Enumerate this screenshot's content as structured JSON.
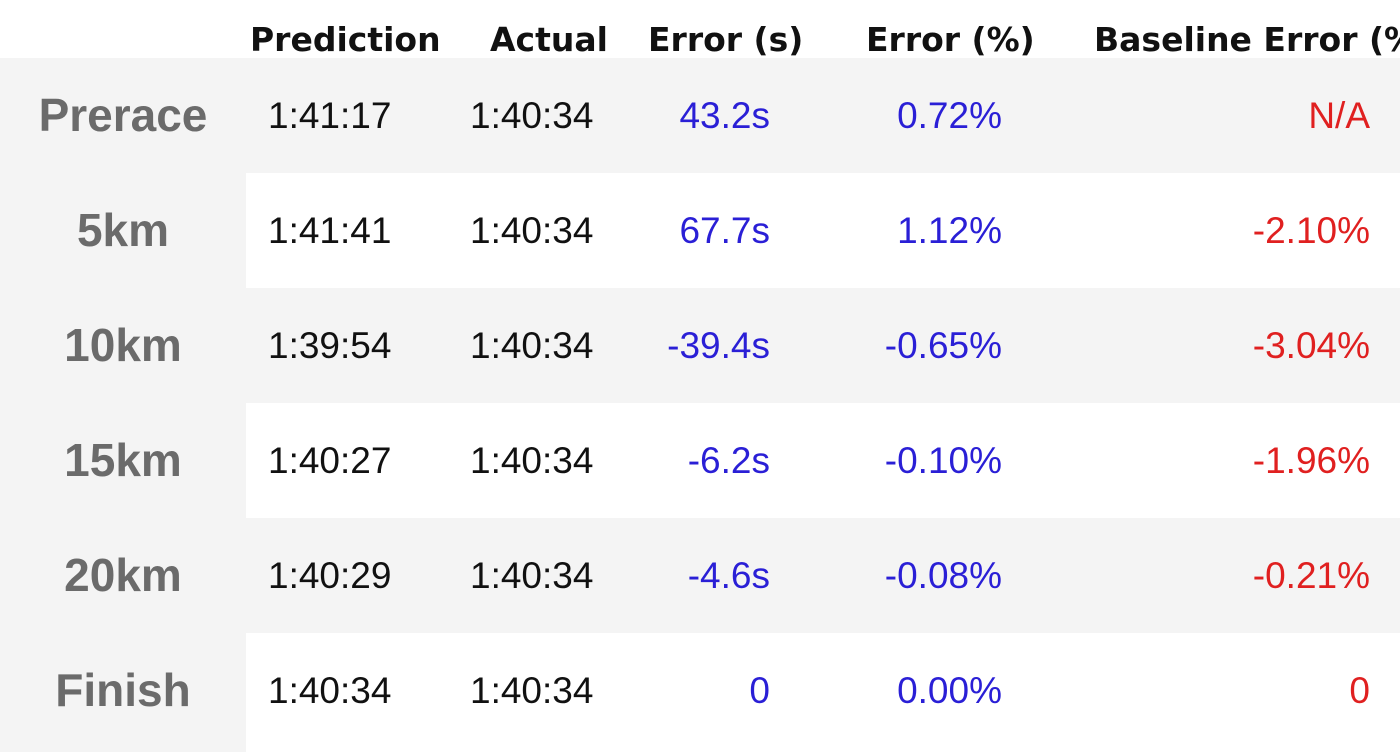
{
  "chart_data": {
    "type": "table",
    "columns": [
      "",
      "Prediction",
      "Actual",
      "Error (s)",
      "Error (%)",
      "Baseline Error (%)"
    ],
    "rows": [
      {
        "label": "Prerace",
        "prediction": "1:41:17",
        "actual": "1:40:34",
        "error_s": "43.2s",
        "error_pct": "0.72%",
        "baseline_error_pct": "N/A"
      },
      {
        "label": "5km",
        "prediction": "1:41:41",
        "actual": "1:40:34",
        "error_s": "67.7s",
        "error_pct": "1.12%",
        "baseline_error_pct": "-2.10%"
      },
      {
        "label": "10km",
        "prediction": "1:39:54",
        "actual": "1:40:34",
        "error_s": "-39.4s",
        "error_pct": "-0.65%",
        "baseline_error_pct": "-3.04%"
      },
      {
        "label": "15km",
        "prediction": "1:40:27",
        "actual": "1:40:34",
        "error_s": "-6.2s",
        "error_pct": "-0.10%",
        "baseline_error_pct": "-1.96%"
      },
      {
        "label": "20km",
        "prediction": "1:40:29",
        "actual": "1:40:34",
        "error_s": "-4.6s",
        "error_pct": "-0.08%",
        "baseline_error_pct": "-0.21%"
      },
      {
        "label": "Finish",
        "prediction": "1:40:34",
        "actual": "1:40:34",
        "error_s": "0",
        "error_pct": "0.00%",
        "baseline_error_pct": "0"
      }
    ]
  },
  "colors": {
    "label_text": "#6b6b6b",
    "model_error": "#2a1fd6",
    "baseline_error": "#e02020",
    "row_stripe": "#f4f4f4",
    "label_column_bg": "#f4f4f4"
  }
}
